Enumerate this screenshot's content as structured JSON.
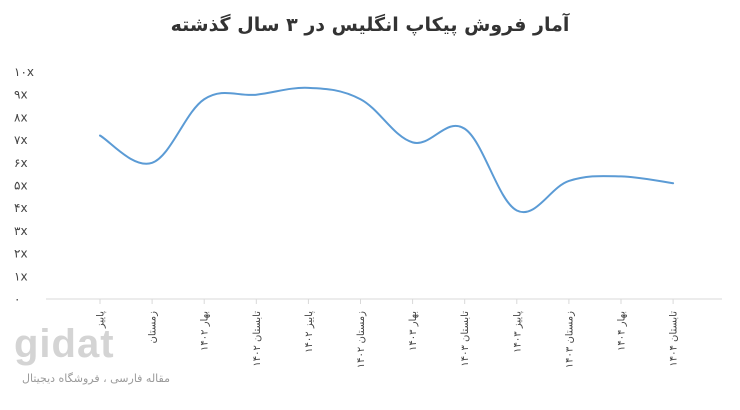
{
  "chart_data": {
    "type": "line",
    "title": "آمار فروش پیکاپ انگلیس در ۳ سال گذشته",
    "categories": [
      "پاییز",
      "زمستان",
      "بهار ۱۴۰۲",
      "تابستان ۱۴۰۲",
      "پاییز ۱۴۰۲",
      "زمستان ۱۴۰۲",
      "بهار ۱۴۰۳",
      "تابستان ۱۴۰۳",
      "پاییز ۱۴۰۳",
      "زمستان ۱۴۰۳",
      "بهار ۱۴۰۴",
      "تابستان ۱۴۰۴"
    ],
    "values": [
      7.2,
      6.0,
      8.8,
      9.0,
      9.3,
      8.8,
      6.9,
      7.5,
      3.9,
      5.2,
      5.4,
      5.1
    ],
    "y_ticks": [
      "۰",
      "۱x",
      "۲x",
      "۳x",
      "۴x",
      "۵x",
      "۶x",
      "۷x",
      "۸x",
      "۹x",
      "۱۰x"
    ],
    "ylim": [
      0,
      10
    ],
    "grid": false,
    "line_color": "#5b9bd5"
  },
  "watermark": {
    "logo": "gidat",
    "tagline": "مقاله فارسی ، فروشگاه دیجیتال"
  }
}
